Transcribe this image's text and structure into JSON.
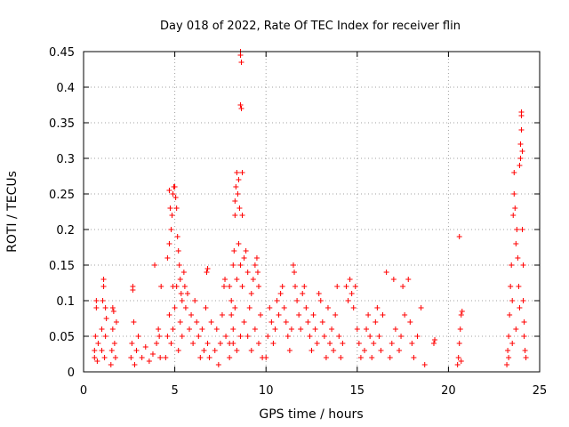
{
  "chart_data": {
    "type": "scatter",
    "title": "Day 018 of 2022, Rate Of TEC Index for receiver flin",
    "xlabel": "GPS time / hours",
    "ylabel": "ROTI / TECUs",
    "xlim": [
      0,
      25
    ],
    "ylim": [
      0,
      0.45
    ],
    "xticks": [
      0,
      5,
      10,
      15,
      20,
      25
    ],
    "xtick_labels": [
      "0",
      "5",
      "10",
      "15",
      "20",
      "25"
    ],
    "yticks": [
      0,
      0.05,
      0.1,
      0.15,
      0.2,
      0.25,
      0.3,
      0.35,
      0.4,
      0.45
    ],
    "ytick_labels": [
      "0",
      "0.05",
      "0.1",
      "0.15",
      "0.2",
      "0.25",
      "0.3",
      "0.35",
      "0.4",
      "0.45"
    ],
    "grid": true,
    "marker": "plus",
    "color": "#ff0000",
    "points": [
      [
        0.6,
        0.02
      ],
      [
        0.6,
        0.03
      ],
      [
        0.65,
        0.05
      ],
      [
        0.7,
        0.1
      ],
      [
        0.7,
        0.09
      ],
      [
        0.75,
        0.015
      ],
      [
        0.8,
        0.04
      ],
      [
        1.0,
        0.03
      ],
      [
        1.0,
        0.06
      ],
      [
        1.05,
        0.1
      ],
      [
        1.1,
        0.13
      ],
      [
        1.1,
        0.12
      ],
      [
        1.15,
        0.02
      ],
      [
        1.2,
        0.05
      ],
      [
        1.2,
        0.09
      ],
      [
        1.25,
        0.075
      ],
      [
        1.5,
        0.01
      ],
      [
        1.55,
        0.03
      ],
      [
        1.6,
        0.06
      ],
      [
        1.6,
        0.09
      ],
      [
        1.65,
        0.085
      ],
      [
        1.7,
        0.04
      ],
      [
        1.75,
        0.02
      ],
      [
        1.8,
        0.07
      ],
      [
        2.6,
        0.02
      ],
      [
        2.65,
        0.04
      ],
      [
        2.7,
        0.12
      ],
      [
        2.7,
        0.115
      ],
      [
        2.75,
        0.07
      ],
      [
        2.8,
        0.01
      ],
      [
        2.9,
        0.03
      ],
      [
        3.0,
        0.05
      ],
      [
        3.2,
        0.02
      ],
      [
        3.4,
        0.035
      ],
      [
        3.6,
        0.015
      ],
      [
        3.8,
        0.025
      ],
      [
        3.9,
        0.15
      ],
      [
        4.0,
        0.04
      ],
      [
        4.1,
        0.06
      ],
      [
        4.15,
        0.05
      ],
      [
        4.2,
        0.02
      ],
      [
        4.25,
        0.12
      ],
      [
        4.6,
        0.16
      ],
      [
        4.7,
        0.18
      ],
      [
        4.7,
        0.255
      ],
      [
        4.75,
        0.23
      ],
      [
        4.8,
        0.2
      ],
      [
        4.85,
        0.22
      ],
      [
        4.9,
        0.25
      ],
      [
        4.9,
        0.12
      ],
      [
        4.95,
        0.26
      ],
      [
        5.0,
        0.26
      ],
      [
        5.05,
        0.245
      ],
      [
        5.1,
        0.23
      ],
      [
        5.15,
        0.19
      ],
      [
        5.2,
        0.17
      ],
      [
        5.25,
        0.15
      ],
      [
        5.3,
        0.13
      ],
      [
        5.35,
        0.11
      ],
      [
        5.4,
        0.1
      ],
      [
        4.5,
        0.02
      ],
      [
        4.6,
        0.05
      ],
      [
        4.7,
        0.08
      ],
      [
        4.8,
        0.04
      ],
      [
        4.9,
        0.06
      ],
      [
        5.0,
        0.09
      ],
      [
        5.1,
        0.12
      ],
      [
        5.2,
        0.03
      ],
      [
        5.3,
        0.07
      ],
      [
        5.4,
        0.05
      ],
      [
        5.5,
        0.14
      ],
      [
        5.55,
        0.12
      ],
      [
        5.6,
        0.09
      ],
      [
        5.7,
        0.11
      ],
      [
        5.8,
        0.06
      ],
      [
        5.9,
        0.08
      ],
      [
        6.0,
        0.04
      ],
      [
        6.1,
        0.1
      ],
      [
        6.2,
        0.07
      ],
      [
        6.3,
        0.05
      ],
      [
        6.4,
        0.02
      ],
      [
        6.5,
        0.06
      ],
      [
        6.6,
        0.03
      ],
      [
        6.7,
        0.09
      ],
      [
        6.8,
        0.04
      ],
      [
        6.9,
        0.02
      ],
      [
        7.0,
        0.07
      ],
      [
        6.75,
        0.14
      ],
      [
        6.8,
        0.145
      ],
      [
        7.2,
        0.03
      ],
      [
        7.3,
        0.06
      ],
      [
        7.4,
        0.01
      ],
      [
        7.5,
        0.04
      ],
      [
        7.6,
        0.08
      ],
      [
        7.7,
        0.12
      ],
      [
        7.75,
        0.13
      ],
      [
        7.8,
        0.05
      ],
      [
        8.0,
        0.04
      ],
      [
        8.1,
        0.08
      ],
      [
        8.2,
        0.15
      ],
      [
        8.25,
        0.17
      ],
      [
        8.3,
        0.22
      ],
      [
        8.3,
        0.24
      ],
      [
        8.35,
        0.26
      ],
      [
        8.4,
        0.28
      ],
      [
        8.45,
        0.25
      ],
      [
        8.5,
        0.27
      ],
      [
        8.55,
        0.23
      ],
      [
        8.6,
        0.45
      ],
      [
        8.6,
        0.445
      ],
      [
        8.65,
        0.435
      ],
      [
        8.6,
        0.375
      ],
      [
        8.65,
        0.37
      ],
      [
        8.7,
        0.28
      ],
      [
        8.7,
        0.22
      ],
      [
        8.0,
        0.12
      ],
      [
        8.1,
        0.1
      ],
      [
        8.2,
        0.06
      ],
      [
        8.3,
        0.09
      ],
      [
        8.4,
        0.13
      ],
      [
        8.5,
        0.18
      ],
      [
        8.6,
        0.15
      ],
      [
        8.7,
        0.12
      ],
      [
        8.8,
        0.16
      ],
      [
        8.9,
        0.17
      ],
      [
        9.0,
        0.14
      ],
      [
        9.1,
        0.09
      ],
      [
        9.2,
        0.11
      ],
      [
        9.3,
        0.13
      ],
      [
        9.4,
        0.15
      ],
      [
        9.5,
        0.16
      ],
      [
        9.55,
        0.14
      ],
      [
        9.6,
        0.12
      ],
      [
        9.7,
        0.08
      ],
      [
        8.0,
        0.02
      ],
      [
        8.2,
        0.04
      ],
      [
        8.4,
        0.03
      ],
      [
        8.6,
        0.05
      ],
      [
        8.8,
        0.07
      ],
      [
        9.0,
        0.05
      ],
      [
        9.2,
        0.03
      ],
      [
        9.4,
        0.06
      ],
      [
        9.6,
        0.04
      ],
      [
        9.8,
        0.02
      ],
      [
        10.0,
        0.02
      ],
      [
        10.1,
        0.05
      ],
      [
        10.2,
        0.09
      ],
      [
        10.3,
        0.07
      ],
      [
        10.4,
        0.04
      ],
      [
        10.5,
        0.06
      ],
      [
        10.6,
        0.1
      ],
      [
        10.7,
        0.08
      ],
      [
        10.8,
        0.11
      ],
      [
        10.9,
        0.12
      ],
      [
        11.0,
        0.09
      ],
      [
        11.1,
        0.07
      ],
      [
        11.2,
        0.05
      ],
      [
        11.3,
        0.03
      ],
      [
        11.4,
        0.06
      ],
      [
        11.5,
        0.15
      ],
      [
        11.55,
        0.14
      ],
      [
        11.6,
        0.12
      ],
      [
        11.7,
        0.1
      ],
      [
        11.8,
        0.08
      ],
      [
        11.9,
        0.06
      ],
      [
        12.0,
        0.11
      ],
      [
        12.1,
        0.12
      ],
      [
        12.2,
        0.09
      ],
      [
        12.3,
        0.07
      ],
      [
        12.4,
        0.05
      ],
      [
        12.5,
        0.03
      ],
      [
        12.6,
        0.08
      ],
      [
        12.7,
        0.06
      ],
      [
        12.8,
        0.04
      ],
      [
        12.9,
        0.11
      ],
      [
        13.0,
        0.1
      ],
      [
        13.1,
        0.07
      ],
      [
        13.2,
        0.05
      ],
      [
        13.3,
        0.02
      ],
      [
        13.4,
        0.09
      ],
      [
        13.5,
        0.04
      ],
      [
        13.6,
        0.06
      ],
      [
        13.7,
        0.03
      ],
      [
        13.8,
        0.08
      ],
      [
        13.9,
        0.12
      ],
      [
        14.0,
        0.05
      ],
      [
        14.1,
        0.02
      ],
      [
        14.2,
        0.04
      ],
      [
        14.4,
        0.12
      ],
      [
        14.5,
        0.1
      ],
      [
        14.6,
        0.13
      ],
      [
        14.7,
        0.11
      ],
      [
        14.8,
        0.09
      ],
      [
        14.9,
        0.12
      ],
      [
        15.0,
        0.06
      ],
      [
        15.1,
        0.04
      ],
      [
        15.2,
        0.02
      ],
      [
        15.4,
        0.03
      ],
      [
        15.5,
        0.06
      ],
      [
        15.6,
        0.08
      ],
      [
        15.7,
        0.05
      ],
      [
        15.8,
        0.02
      ],
      [
        15.9,
        0.04
      ],
      [
        16.0,
        0.07
      ],
      [
        16.1,
        0.09
      ],
      [
        16.2,
        0.05
      ],
      [
        16.3,
        0.03
      ],
      [
        16.4,
        0.08
      ],
      [
        16.6,
        0.14
      ],
      [
        16.8,
        0.02
      ],
      [
        16.9,
        0.04
      ],
      [
        17.0,
        0.13
      ],
      [
        17.1,
        0.06
      ],
      [
        17.3,
        0.03
      ],
      [
        17.5,
        0.12
      ],
      [
        17.4,
        0.05
      ],
      [
        17.6,
        0.08
      ],
      [
        17.8,
        0.13
      ],
      [
        17.9,
        0.07
      ],
      [
        18.0,
        0.04
      ],
      [
        18.1,
        0.02
      ],
      [
        18.3,
        0.05
      ],
      [
        18.5,
        0.09
      ],
      [
        18.7,
        0.01
      ],
      [
        19.2,
        0.04
      ],
      [
        19.25,
        0.045
      ],
      [
        20.5,
        0.01
      ],
      [
        20.55,
        0.02
      ],
      [
        20.6,
        0.04
      ],
      [
        20.65,
        0.06
      ],
      [
        20.7,
        0.08
      ],
      [
        20.75,
        0.085
      ],
      [
        20.6,
        0.19
      ],
      [
        20.7,
        0.015
      ],
      [
        23.2,
        0.01
      ],
      [
        23.25,
        0.03
      ],
      [
        23.3,
        0.05
      ],
      [
        23.35,
        0.08
      ],
      [
        23.4,
        0.12
      ],
      [
        23.45,
        0.15
      ],
      [
        23.5,
        0.1
      ],
      [
        23.55,
        0.22
      ],
      [
        23.6,
        0.25
      ],
      [
        23.6,
        0.28
      ],
      [
        23.65,
        0.23
      ],
      [
        23.7,
        0.18
      ],
      [
        23.75,
        0.2
      ],
      [
        23.8,
        0.16
      ],
      [
        23.85,
        0.12
      ],
      [
        23.9,
        0.09
      ],
      [
        23.9,
        0.29
      ],
      [
        23.95,
        0.3
      ],
      [
        23.95,
        0.32
      ],
      [
        24.0,
        0.34
      ],
      [
        24.0,
        0.36
      ],
      [
        24.0,
        0.365
      ],
      [
        24.05,
        0.31
      ],
      [
        24.05,
        0.2
      ],
      [
        24.1,
        0.15
      ],
      [
        24.1,
        0.1
      ],
      [
        24.15,
        0.07
      ],
      [
        24.15,
        0.05
      ],
      [
        24.2,
        0.03
      ],
      [
        24.25,
        0.02
      ],
      [
        23.3,
        0.02
      ],
      [
        23.5,
        0.04
      ],
      [
        23.7,
        0.06
      ]
    ]
  }
}
